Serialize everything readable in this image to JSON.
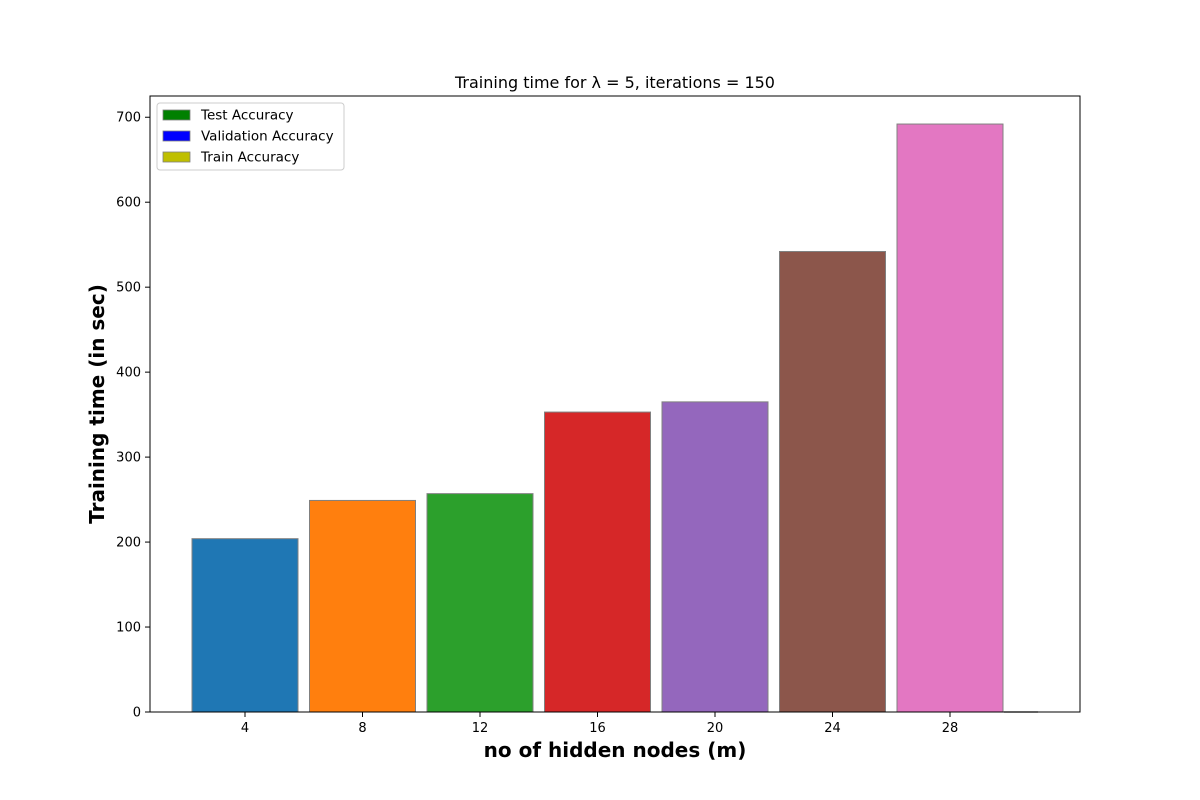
{
  "chart_data": {
    "type": "bar",
    "title": "Training time for λ = 5, iterations = 150",
    "xlabel": "no of hidden nodes (m)",
    "ylabel": "Training time (in sec)",
    "categories": [
      "4",
      "8",
      "12",
      "16",
      "20",
      "24",
      "28"
    ],
    "values": [
      204,
      249,
      257,
      353,
      365,
      542,
      692
    ],
    "bar_colors": [
      "#1f77b4",
      "#ff7f0e",
      "#2ca02c",
      "#d62728",
      "#9467bd",
      "#8c564b",
      "#e377c2"
    ],
    "bar_edge_color": "#808080",
    "ylim": [
      0,
      725
    ],
    "yticks": [
      0,
      100,
      200,
      300,
      400,
      500,
      600,
      700
    ],
    "grid": false,
    "legend_position": "top-left",
    "legend": [
      {
        "label": "Test Accuracy",
        "color": "#008000"
      },
      {
        "label": "Validation Accuracy",
        "color": "#0000ff"
      },
      {
        "label": "Train Accuracy",
        "color": "#bfbf00"
      }
    ]
  }
}
